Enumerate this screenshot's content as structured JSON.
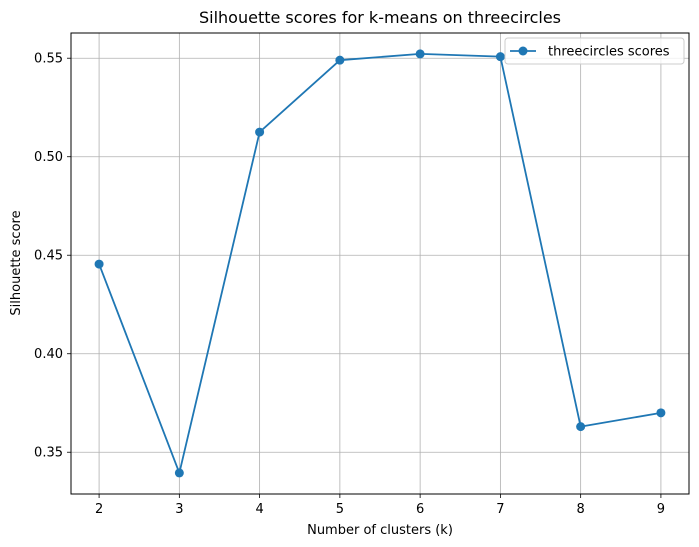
{
  "chart_data": {
    "type": "line",
    "title": "Silhouette scores for k-means on threecircles",
    "xlabel": "Number of clusters (k)",
    "ylabel": "Silhouette score",
    "x": [
      2,
      3,
      4,
      5,
      6,
      7,
      8,
      9
    ],
    "series": [
      {
        "name": "threecircles scores",
        "values": [
          0.4455,
          0.3395,
          0.5125,
          0.549,
          0.5522,
          0.5508,
          0.363,
          0.37
        ],
        "color": "#1f77b4",
        "marker": "circle"
      }
    ],
    "xlim": [
      1.65,
      9.35
    ],
    "ylim": [
      0.3288,
      0.5628
    ],
    "xticks": [
      "2",
      "3",
      "4",
      "5",
      "6",
      "7",
      "8",
      "9"
    ],
    "yticks": [
      "0.35",
      "0.40",
      "0.45",
      "0.50",
      "0.55"
    ],
    "grid": true,
    "legend_position": "top-right"
  }
}
